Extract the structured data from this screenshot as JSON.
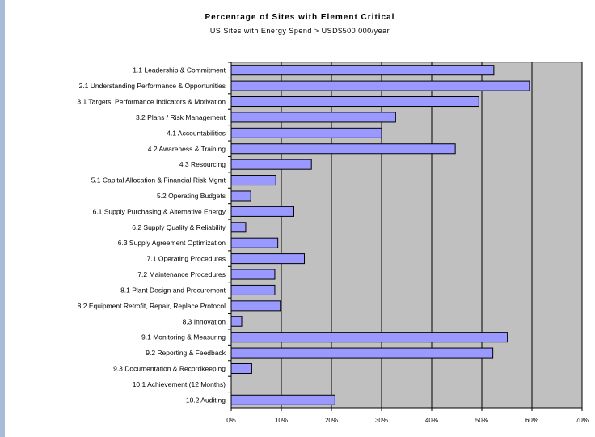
{
  "chart_data": {
    "type": "bar",
    "orientation": "horizontal",
    "title": "Percentage of Sites with Element Critical",
    "subtitle": "US Sites with Energy Spend > USD$500,000/year",
    "categories": [
      "1.1 Leadership & Commitment",
      "2.1 Understanding Performance & Opportunities",
      "3.1 Targets, Performance Indicators & Motivation",
      "3.2 Plans / Risk Management",
      "4.1 Accountabilities",
      "4.2 Awareness & Training",
      "4.3 Resourcing",
      "5.1 Capital Allocation & Financial Risk Mgmt",
      "5.2 Operating Budgets",
      "6.1 Supply Purchasing & Alternative Energy",
      "6.2 Supply Quality & Reliability",
      "6.3 Supply Agreement Optimization",
      "7.1 Operating Procedures",
      "7.2 Maintenance Procedures",
      "8.1 Plant Design and Procurement",
      "8.2 Equipment Retrofit, Repair, Replace Protocol",
      "8.3 Innovation",
      "9.1 Monitoring & Measuring",
      "9.2 Reporting & Feedback",
      "9.3 Documentation & Recordkeeping",
      "10.1 Achievement (12 Months)",
      "10.2 Auditing"
    ],
    "values": [
      52.4,
      59.5,
      49.4,
      32.8,
      30.0,
      44.7,
      16.0,
      8.9,
      3.9,
      12.5,
      2.9,
      9.3,
      14.6,
      8.7,
      8.7,
      9.8,
      2.1,
      55.1,
      52.2,
      4.1,
      0,
      20.7
    ],
    "xticks": [
      "0%",
      "10%",
      "20%",
      "30%",
      "40%",
      "50%",
      "60%",
      "70%"
    ],
    "xlim": [
      0,
      70
    ],
    "grid": true,
    "colors": {
      "bar_fill": "#9999ff",
      "bar_stroke": "#000000",
      "plot_background": "#c0c0c0",
      "gridline": "#000000"
    }
  }
}
